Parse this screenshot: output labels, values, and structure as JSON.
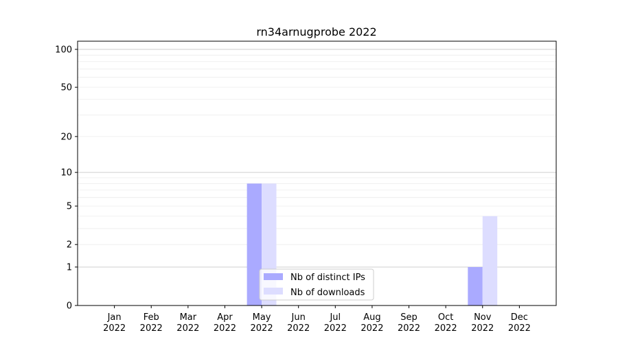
{
  "chart_data": {
    "type": "bar",
    "title": "rn34arnugprobe 2022",
    "xlabel": "",
    "ylabel": "",
    "categories": [
      "Jan\n2022",
      "Feb\n2022",
      "Mar\n2022",
      "Apr\n2022",
      "May\n2022",
      "Jun\n2022",
      "Jul\n2022",
      "Aug\n2022",
      "Sep\n2022",
      "Oct\n2022",
      "Nov\n2022",
      "Dec\n2022"
    ],
    "series": [
      {
        "name": "Nb of distinct IPs",
        "color": "#aaaaff",
        "values": [
          0,
          0,
          0,
          0,
          8,
          0,
          0,
          0,
          0,
          0,
          1,
          0
        ]
      },
      {
        "name": "Nb of downloads",
        "color": "#ddddff",
        "values": [
          0,
          0,
          0,
          0,
          8,
          0,
          0,
          0,
          0,
          0,
          4,
          0
        ]
      }
    ],
    "yscale": "symlog (log of 1+y)",
    "ylim": [
      0,
      116
    ],
    "yticks": [
      0,
      1,
      2,
      5,
      10,
      20,
      50,
      100
    ],
    "grid": true,
    "legend": "lower-center"
  }
}
